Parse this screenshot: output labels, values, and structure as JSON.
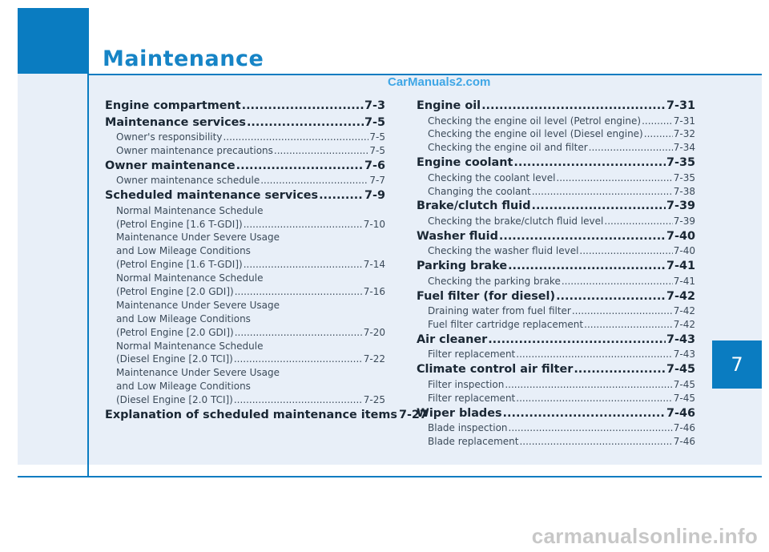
{
  "header": {
    "title": "Maintenance",
    "watermark": "CarManuals2.com"
  },
  "chapter_tab": "7",
  "footer": {
    "site": "carmanualsonline.info"
  },
  "left_column": [
    {
      "level": 1,
      "text": "Engine compartment",
      "page": "7-3"
    },
    {
      "level": 1,
      "text": "Maintenance services",
      "page": "7-5"
    },
    {
      "level": 2,
      "text": "Owner's responsibility",
      "page": "7-5"
    },
    {
      "level": 2,
      "text": "Owner maintenance precautions",
      "page": "7-5"
    },
    {
      "level": 1,
      "text": "Owner maintenance",
      "page": "7-6"
    },
    {
      "level": 2,
      "text": "Owner maintenance schedule",
      "page": "7-7"
    },
    {
      "level": 1,
      "text": "Scheduled maintenance services",
      "page": "7-9"
    },
    {
      "level": 2,
      "lines": [
        "Normal Maintenance Schedule"
      ],
      "text": "(Petrol Engine [1.6 T-GDI])",
      "page": "7-10"
    },
    {
      "level": 2,
      "lines": [
        "Maintenance Under Severe Usage",
        "and Low Mileage Conditions"
      ],
      "text": "(Petrol Engine [1.6 T-GDI])",
      "page": "7-14"
    },
    {
      "level": 2,
      "lines": [
        "Normal Maintenance Schedule"
      ],
      "text": "(Petrol Engine [2.0 GDI])",
      "page": "7-16"
    },
    {
      "level": 2,
      "lines": [
        "Maintenance Under Severe Usage",
        "and Low Mileage Conditions"
      ],
      "text": "(Petrol Engine [2.0 GDI])",
      "page": "7-20"
    },
    {
      "level": 2,
      "lines": [
        "Normal Maintenance Schedule"
      ],
      "text": "(Diesel Engine [2.0 TCI])",
      "page": "7-22"
    },
    {
      "level": 2,
      "lines": [
        "Maintenance Under Severe Usage",
        "and Low Mileage Conditions"
      ],
      "text": "(Diesel Engine [2.0 TCI])",
      "page": "7-25"
    },
    {
      "level": 1,
      "text": "Explanation of scheduled maintenance items",
      "page": "7-27"
    }
  ],
  "right_column": [
    {
      "level": 1,
      "text": "Engine oil",
      "page": "7-31"
    },
    {
      "level": 2,
      "text": "Checking the engine oil level (Petrol engine)",
      "page": "7-31"
    },
    {
      "level": 2,
      "text": "Checking the engine oil level (Diesel engine)",
      "page": "7-32"
    },
    {
      "level": 2,
      "text": "Checking the engine oil and filter",
      "page": "7-34"
    },
    {
      "level": 1,
      "text": "Engine coolant",
      "page": "7-35"
    },
    {
      "level": 2,
      "text": "Checking the coolant level",
      "page": "7-35"
    },
    {
      "level": 2,
      "text": "Changing the coolant",
      "page": "7-38"
    },
    {
      "level": 1,
      "text": "Brake/clutch fluid",
      "page": "7-39"
    },
    {
      "level": 2,
      "text": "Checking the brake/clutch fluid level",
      "page": "7-39"
    },
    {
      "level": 1,
      "text": "Washer fluid",
      "page": "7-40"
    },
    {
      "level": 2,
      "text": "Checking the washer fluid level",
      "page": "7-40"
    },
    {
      "level": 1,
      "text": "Parking brake",
      "page": "7-41"
    },
    {
      "level": 2,
      "text": "Checking the parking brake",
      "page": "7-41"
    },
    {
      "level": 1,
      "text": "Fuel filter (for diesel)",
      "page": "7-42"
    },
    {
      "level": 2,
      "text": "Draining water from fuel filter",
      "page": "7-42"
    },
    {
      "level": 2,
      "text": "Fuel filter cartridge replacement",
      "page": "7-42"
    },
    {
      "level": 1,
      "text": "Air cleaner",
      "page": "7-43"
    },
    {
      "level": 2,
      "text": "Filter replacement",
      "page": "7-43"
    },
    {
      "level": 1,
      "text": "Climate control air filter",
      "page": "7-45"
    },
    {
      "level": 2,
      "text": "Filter inspection",
      "page": "7-45"
    },
    {
      "level": 2,
      "text": "Filter replacement",
      "page": "7-45"
    },
    {
      "level": 1,
      "text": "Wiper blades",
      "page": "7-46"
    },
    {
      "level": 2,
      "text": "Blade inspection",
      "page": "7-46"
    },
    {
      "level": 2,
      "text": "Blade replacement",
      "page": "7-46"
    }
  ]
}
